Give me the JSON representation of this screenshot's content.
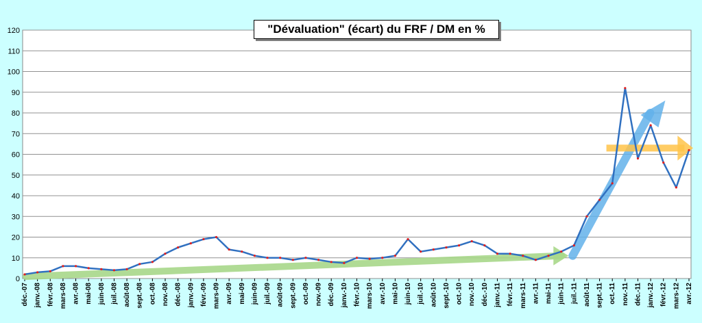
{
  "chart_data": {
    "type": "line",
    "title": "\"Dévaluation\" (écart) du FRF / DM en %",
    "ylim": [
      0,
      120
    ],
    "yticks": [
      0,
      10,
      20,
      30,
      40,
      50,
      60,
      70,
      80,
      90,
      100,
      110,
      120
    ],
    "categories": [
      "déc.-07",
      "janv.-08",
      "févr.-08",
      "mars-08",
      "avr.-08",
      "mai-08",
      "juin-08",
      "juil.-08",
      "août-08",
      "sept.-08",
      "oct.-08",
      "nov.-08",
      "déc.-08",
      "janv.-09",
      "févr.-09",
      "mars-09",
      "avr.-09",
      "mai-09",
      "juin-09",
      "juil.-09",
      "août-09",
      "sept.-09",
      "oct.-09",
      "nov.-09",
      "déc.-09",
      "janv.-10",
      "févr.-10",
      "mars-10",
      "avr.-10",
      "mai-10",
      "juin-10",
      "juil.-10",
      "août-10",
      "sept.-10",
      "oct.-10",
      "nov.-10",
      "déc.-10",
      "janv.-11",
      "févr.-11",
      "mars-11",
      "avr.-11",
      "mai-11",
      "juin-11",
      "juil.-11",
      "août-11",
      "sept.-11",
      "oct.-11",
      "nov.-11",
      "déc.-11",
      "janv.-12",
      "févr.-12",
      "mars-12",
      "avr.-12"
    ],
    "series": [
      {
        "values": [
          2,
          3,
          3.5,
          6,
          6,
          5,
          4.5,
          4,
          4.5,
          7,
          8,
          12,
          15,
          17,
          19,
          20,
          14,
          13,
          11,
          10,
          10,
          9,
          10,
          9,
          8,
          7.5,
          10,
          9.5,
          10,
          11,
          19,
          13,
          14,
          15,
          16,
          18,
          16,
          12,
          12,
          11,
          9,
          11,
          13,
          16,
          30,
          38,
          46,
          92,
          58,
          74,
          56,
          44,
          62
        ],
        "color": "#3070c0"
      }
    ],
    "grid": true,
    "legend": "none",
    "annotations": {
      "arrow_colors": [
        "#a8d88a",
        "#63b2ea",
        "#ffc44a"
      ]
    }
  }
}
